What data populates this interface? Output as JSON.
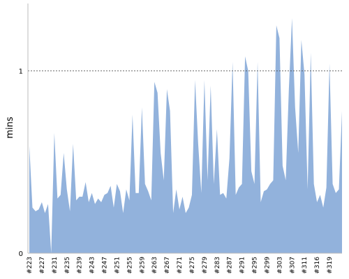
{
  "chart_data": {
    "type": "area",
    "y_label": "mins",
    "categories": [
      "#223",
      null,
      null,
      null,
      "#227",
      null,
      null,
      null,
      "#231",
      null,
      null,
      null,
      "#235",
      null,
      null,
      null,
      "#239",
      null,
      null,
      null,
      "#243",
      null,
      null,
      null,
      "#247",
      null,
      null,
      null,
      "#251",
      null,
      null,
      null,
      "#255",
      null,
      null,
      null,
      "#259",
      null,
      null,
      null,
      "#263",
      null,
      null,
      null,
      "#267",
      null,
      null,
      null,
      "#271",
      null,
      null,
      null,
      "#275",
      null,
      null,
      null,
      "#279",
      null,
      null,
      null,
      "#283",
      null,
      null,
      null,
      "#287",
      null,
      null,
      null,
      "#291",
      null,
      null,
      null,
      "#295",
      null,
      null,
      null,
      "#299",
      null,
      null,
      null,
      "#303",
      null,
      null,
      null,
      "#307",
      null,
      null,
      null,
      "#311",
      null,
      null,
      null,
      "#316",
      null,
      null,
      null,
      "#319",
      null,
      null,
      null,
      null
    ],
    "values": [
      0.59,
      0.25,
      0.23,
      0.24,
      0.28,
      0.22,
      0.27,
      0,
      0.66,
      0.3,
      0.32,
      0.55,
      0.35,
      0.23,
      0.6,
      0.29,
      0.31,
      0.31,
      0.39,
      0.28,
      0.33,
      0.27,
      0.3,
      0.28,
      0.32,
      0.33,
      0.37,
      0.25,
      0.38,
      0.34,
      0.22,
      0.35,
      0.29,
      0.76,
      0.33,
      0.33,
      0.8,
      0.38,
      0.34,
      0.29,
      0.94,
      0.88,
      0.55,
      0.4,
      0.9,
      0.78,
      0.22,
      0.35,
      0.24,
      0.31,
      0.22,
      0.25,
      0.32,
      0.95,
      0.6,
      0.33,
      0.95,
      0.4,
      0.92,
      0.38,
      0.68,
      0.32,
      0.33,
      0.3,
      0.52,
      1.05,
      0.32,
      0.36,
      0.38,
      1.08,
      1.0,
      0.45,
      0.38,
      1.05,
      0.28,
      0.34,
      0.35,
      0.38,
      0.4,
      1.25,
      1.18,
      0.48,
      0.4,
      0.9,
      1.29,
      0.8,
      0.55,
      1.17,
      0.98,
      0.35,
      1.1,
      0.38,
      0.28,
      0.32,
      0.25,
      0.36,
      1.04,
      0.38,
      0.33,
      0.35,
      0.78
    ],
    "color": "#92b2dc",
    "ylim": [
      0,
      1.37
    ],
    "yticks": [
      0,
      1
    ],
    "grid": true
  }
}
